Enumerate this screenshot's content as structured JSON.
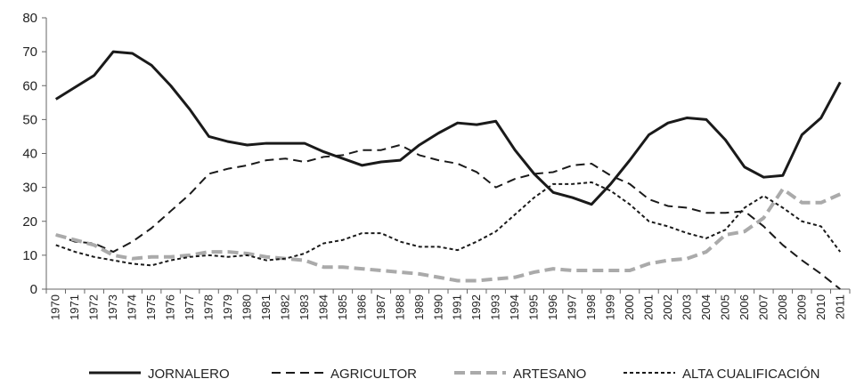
{
  "chart_data": {
    "type": "line",
    "categories": [
      "1970",
      "1971",
      "1972",
      "1973",
      "1974",
      "1975",
      "1976",
      "1977",
      "1978",
      "1979",
      "1980",
      "1981",
      "1982",
      "1983",
      "1984",
      "1985",
      "1986",
      "1987",
      "1988",
      "1989",
      "1990",
      "1991",
      "1992",
      "1993",
      "1994",
      "1995",
      "1996",
      "1997",
      "1998",
      "1999",
      "2000",
      "2001",
      "2002",
      "2003",
      "2004",
      "2005",
      "2006",
      "2007",
      "2008",
      "2009",
      "2010",
      "2011"
    ],
    "series": [
      {
        "name": "JORNALERO",
        "color": "#1a1a1a",
        "values": [
          56,
          59.5,
          63,
          70,
          69.5,
          66,
          60,
          53,
          45,
          43.5,
          42.5,
          43,
          43,
          43,
          40.5,
          38.5,
          36.5,
          37.5,
          38,
          42.5,
          46,
          49,
          48.5,
          49.5,
          41,
          34,
          28.5,
          27,
          25,
          31,
          38,
          45.5,
          49,
          50.5,
          50,
          44,
          36,
          33,
          33.5,
          45.5,
          50.5,
          61
        ]
      },
      {
        "name": "AGRICULTOR",
        "color": "#1a1a1a",
        "values": [
          16,
          14,
          13.5,
          11,
          14,
          18,
          23,
          28,
          34,
          35.5,
          36.5,
          38,
          38.5,
          37.5,
          39,
          39.5,
          41,
          41,
          42.5,
          39.5,
          38,
          37,
          34.5,
          30,
          32.5,
          34,
          34.5,
          36.5,
          37,
          33.5,
          31,
          26.5,
          24.5,
          24,
          22.5,
          22.5,
          23,
          18.5,
          13,
          8.5,
          4.5,
          0
        ]
      },
      {
        "name": "ARTESANO",
        "color": "#aaaaaa",
        "values": [
          16,
          14.5,
          13,
          10,
          9,
          9.5,
          9.5,
          10,
          11,
          11,
          10.5,
          9.5,
          9,
          8.5,
          6.5,
          6.5,
          6,
          5.5,
          5,
          4.5,
          3.5,
          2.5,
          2.5,
          3,
          3.5,
          5,
          6,
          5.5,
          5.5,
          5.5,
          5.5,
          7.5,
          8.5,
          9,
          11,
          16,
          17,
          21,
          29.5,
          25.5,
          25.5,
          28
        ]
      },
      {
        "name": "ALTA CUALIFICACIÓN",
        "color": "#1a1a1a",
        "values": [
          13,
          11,
          9.5,
          8.5,
          7.5,
          7,
          8.5,
          9.5,
          10,
          9.5,
          10,
          8.5,
          9,
          10.5,
          13.5,
          14.5,
          16.5,
          16.5,
          14,
          12.5,
          12.5,
          11.5,
          14,
          17,
          22,
          27,
          31,
          31,
          31.5,
          29,
          25,
          20,
          18.5,
          16.5,
          15,
          17.5,
          24,
          27.5,
          24,
          20,
          18.5,
          11
        ]
      }
    ],
    "ylim": [
      0,
      80
    ],
    "yticks": [
      0,
      10,
      20,
      30,
      40,
      50,
      60,
      70,
      80
    ]
  }
}
